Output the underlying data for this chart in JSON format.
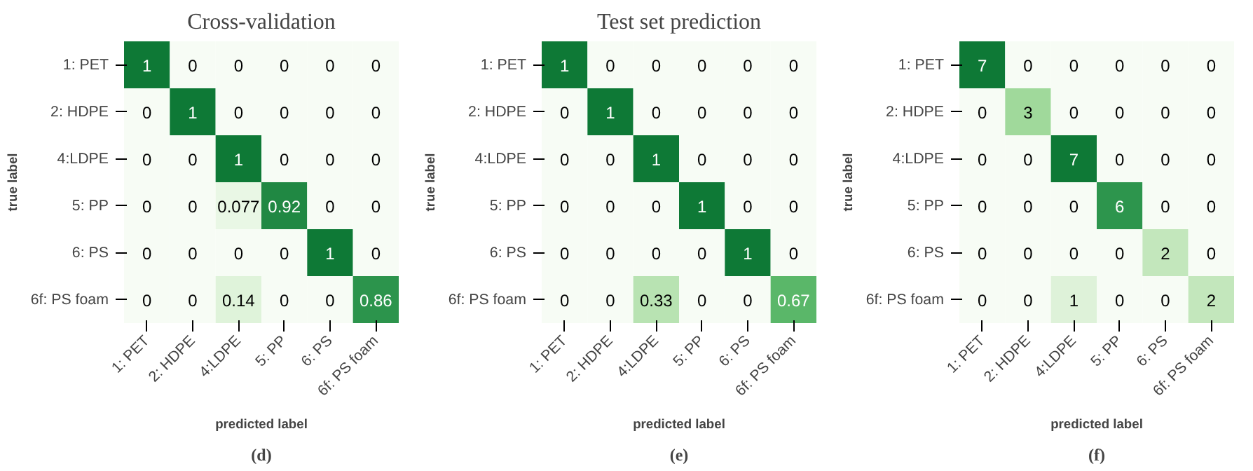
{
  "chart_data": [
    {
      "type": "heatmap",
      "data_labels": true,
      "title": "Cross-validation",
      "xlabel": "predicted label",
      "ylabel": "true label",
      "annotations": [
        "(d)"
      ],
      "categories": [
        "1: PET",
        "2: HDPE",
        "4:LDPE",
        "5: PP",
        "6: PS",
        "6f: PS foam"
      ],
      "y_categories": [
        "1: PET",
        "2: HDPE",
        "4:LDPE",
        "5: PP",
        "6: PS",
        "6f: PS foam"
      ],
      "cells": [
        [
          1,
          0,
          0,
          0,
          0,
          0
        ],
        [
          0,
          1,
          0,
          0,
          0,
          0
        ],
        [
          0,
          0,
          1,
          0,
          0,
          0
        ],
        [
          0,
          0,
          0.077,
          0.92,
          0,
          0
        ],
        [
          0,
          0,
          0,
          0,
          1,
          0
        ],
        [
          0,
          0,
          0.14,
          0,
          0,
          0.86
        ]
      ]
    },
    {
      "type": "heatmap",
      "data_labels": true,
      "title": "Test set prediction",
      "xlabel": "predicted label",
      "ylabel": "true label",
      "annotations": [
        "(e)"
      ],
      "categories": [
        "1: PET",
        "2: HDPE",
        "4:LDPE",
        "5: PP",
        "6: PS",
        "6f: PS foam"
      ],
      "y_categories": [
        "1: PET",
        "2: HDPE",
        "4:LDPE",
        "5: PP",
        "6: PS",
        "6f: PS foam"
      ],
      "cells": [
        [
          1,
          0,
          0,
          0,
          0,
          0
        ],
        [
          0,
          1,
          0,
          0,
          0,
          0
        ],
        [
          0,
          0,
          1,
          0,
          0,
          0
        ],
        [
          0,
          0,
          0,
          1,
          0,
          0
        ],
        [
          0,
          0,
          0,
          0,
          1,
          0
        ],
        [
          0,
          0,
          0.33,
          0,
          0,
          0.67
        ]
      ]
    },
    {
      "type": "heatmap",
      "data_labels": true,
      "xlabel": "predicted label",
      "ylabel": "true label",
      "annotations": [
        "(f)"
      ],
      "categories": [
        "1: PET",
        "2: HDPE",
        "4:LDPE",
        "5: PP",
        "6: PS",
        "6f: PS foam"
      ],
      "y_categories": [
        "1: PET",
        "2: HDPE",
        "4:LDPE",
        "5: PP",
        "6: PS",
        "6f: PS foam"
      ],
      "cells": [
        [
          7,
          0,
          0,
          0,
          0,
          0
        ],
        [
          0,
          3,
          0,
          0,
          0,
          0
        ],
        [
          0,
          0,
          7,
          0,
          0,
          0
        ],
        [
          0,
          0,
          0,
          6,
          0,
          0
        ],
        [
          0,
          0,
          0,
          0,
          2,
          0
        ],
        [
          0,
          0,
          1,
          0,
          0,
          2
        ]
      ]
    }
  ]
}
